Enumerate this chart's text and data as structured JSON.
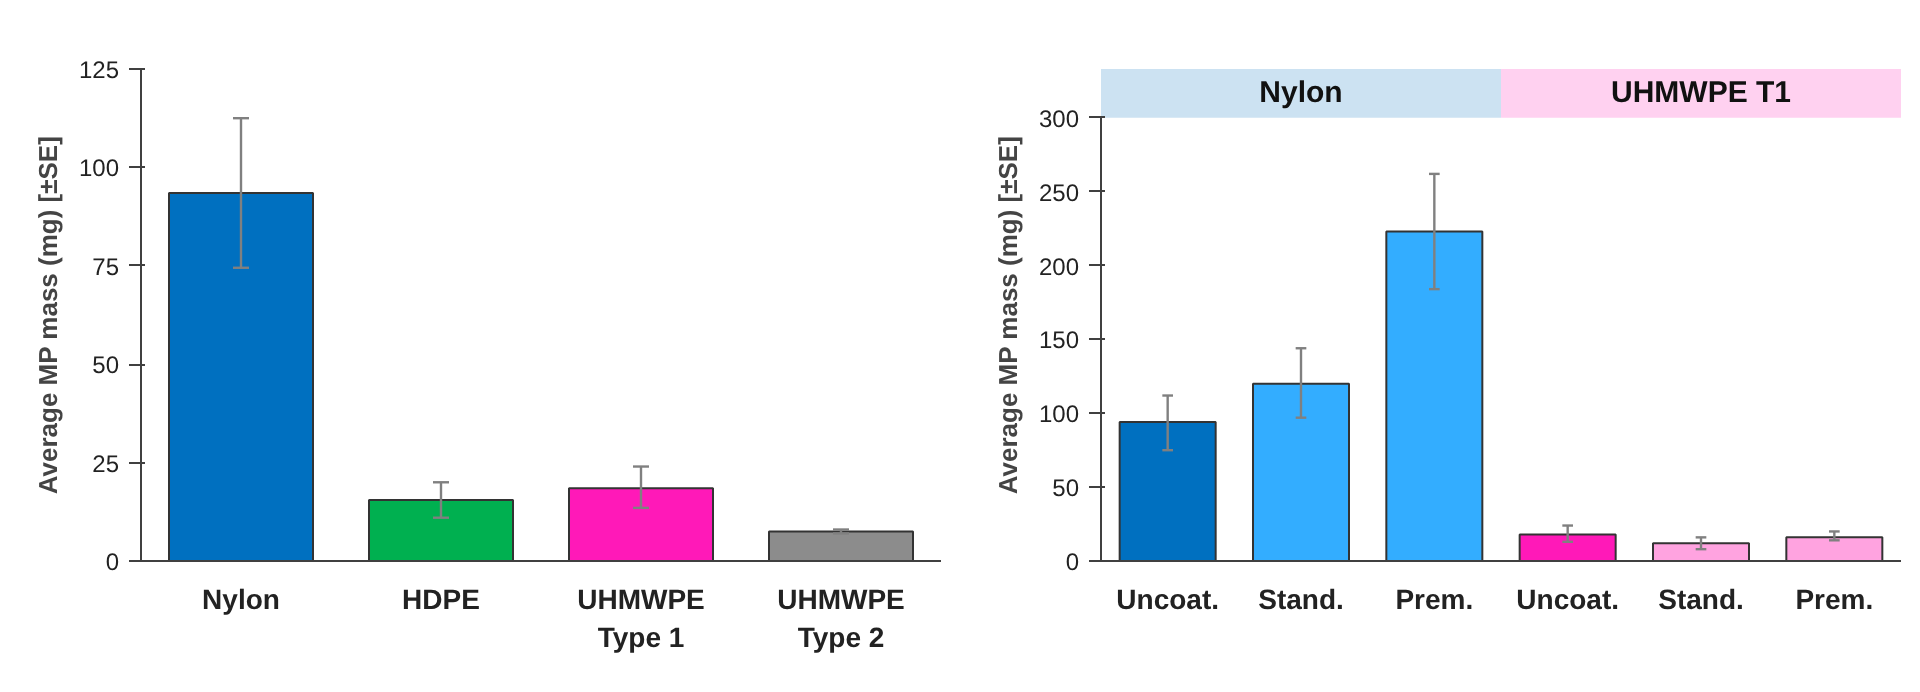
{
  "chart_data": [
    {
      "type": "bar",
      "ylabel": "Average MP mass (mg) [±SE]",
      "categories": [
        "Nylon",
        "HDPE",
        "UHMWPE\nType 1",
        "UHMWPE\nType 2"
      ],
      "values": [
        93.5,
        15.5,
        18.5,
        7.5
      ],
      "colors": [
        "#0070c0",
        "#00b050",
        "#ff19b8",
        "#8c8c8c"
      ],
      "errors": [
        [
          74.5,
          112.5
        ],
        [
          11,
          20
        ],
        [
          13.5,
          24
        ],
        [
          7,
          8
        ]
      ],
      "ylim": [
        0,
        125
      ],
      "yticks": [
        0,
        25,
        50,
        75,
        100,
        125
      ],
      "grid": false
    },
    {
      "type": "bar",
      "ylabel": "Average MP mass (mg) [±SE]",
      "categories": [
        "Uncoat.",
        "Stand.",
        "Prem.",
        "Uncoat.",
        "Stand.",
        "Prem."
      ],
      "values": [
        94,
        120,
        223,
        18,
        12,
        16
      ],
      "colors": [
        "#0070c0",
        "#33adff",
        "#33adff",
        "#ff19b8",
        "#ffa3e0",
        "#ffa3e0"
      ],
      "errors": [
        [
          75,
          112
        ],
        [
          97,
          144
        ],
        [
          184,
          262
        ],
        [
          13,
          24
        ],
        [
          8,
          16
        ],
        [
          14,
          20
        ]
      ],
      "ylim": [
        0,
        300
      ],
      "yticks": [
        0,
        50,
        100,
        150,
        200,
        250,
        300
      ],
      "grid": false,
      "annotations": [
        "Nylon",
        "UHMWPE T1"
      ]
    }
  ]
}
